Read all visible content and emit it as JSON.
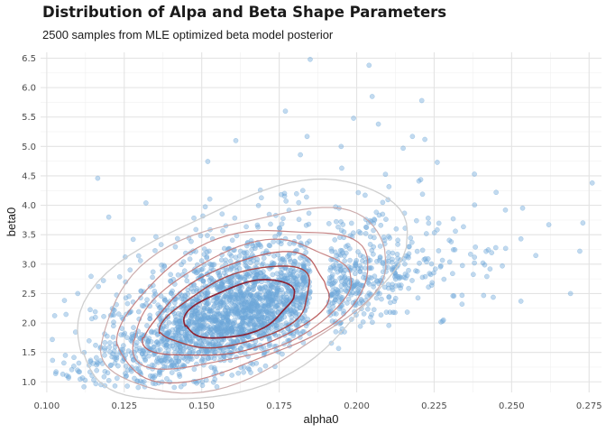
{
  "chart_data": {
    "type": "scatter",
    "title": "Distribution of Alpa and Beta Shape Parameters",
    "subtitle": "2500 samples from MLE optimized beta model posterior",
    "xlabel": "alpha0",
    "ylabel": "beta0",
    "xlim": [
      0.098,
      0.279
    ],
    "ylim": [
      0.82,
      6.6
    ],
    "x_ticks": [
      "0.100",
      "0.125",
      "0.150",
      "0.175",
      "0.200",
      "0.225",
      "0.250",
      "0.275"
    ],
    "x_tick_values": [
      0.1,
      0.125,
      0.15,
      0.175,
      0.2,
      0.225,
      0.25,
      0.275
    ],
    "y_ticks": [
      "1.0",
      "1.5",
      "2.0",
      "2.5",
      "3.0",
      "3.5",
      "4.0",
      "4.5",
      "5.0",
      "5.5",
      "6.0",
      "6.5"
    ],
    "y_tick_values": [
      1.0,
      1.5,
      2.0,
      2.5,
      3.0,
      3.5,
      4.0,
      4.5,
      5.0,
      5.5,
      6.0,
      6.5
    ],
    "grid": true,
    "n_samples": 2500,
    "density_center": [
      0.162,
      2.2
    ],
    "point_color": "#6ea8d8",
    "contour_colors": [
      "#cccccc",
      "#c9a8a8",
      "#c58080",
      "#b95a5a",
      "#a83c3c",
      "#8b1a2a"
    ],
    "outlier_points": [
      [
        0.185,
        6.48
      ],
      [
        0.204,
        6.38
      ],
      [
        0.205,
        5.85
      ],
      [
        0.221,
        5.78
      ],
      [
        0.177,
        5.6
      ],
      [
        0.199,
        5.48
      ],
      [
        0.207,
        5.38
      ],
      [
        0.161,
        5.1
      ],
      [
        0.184,
        5.17
      ],
      [
        0.218,
        5.17
      ],
      [
        0.222,
        5.12
      ],
      [
        0.238,
        4.53
      ],
      [
        0.245,
        4.22
      ],
      [
        0.276,
        4.38
      ],
      [
        0.248,
        3.92
      ],
      [
        0.262,
        3.67
      ],
      [
        0.273,
        3.7
      ],
      [
        0.253,
        3.43
      ],
      [
        0.272,
        3.22
      ],
      [
        0.238,
        3.02
      ],
      [
        0.247,
        2.97
      ],
      [
        0.242,
        2.79
      ],
      [
        0.234,
        2.47
      ],
      [
        0.253,
        2.37
      ],
      [
        0.269,
        2.5
      ],
      [
        0.234,
        2.32
      ],
      [
        0.103,
        1.17
      ],
      [
        0.122,
        0.93
      ],
      [
        0.106,
        1.45
      ],
      [
        0.11,
        2.5
      ],
      [
        0.12,
        3.8
      ],
      [
        0.132,
        4.04
      ],
      [
        0.228,
        2.05
      ],
      [
        0.226,
        4.73
      ],
      [
        0.215,
        4.97
      ],
      [
        0.195,
        5.0
      ]
    ]
  }
}
